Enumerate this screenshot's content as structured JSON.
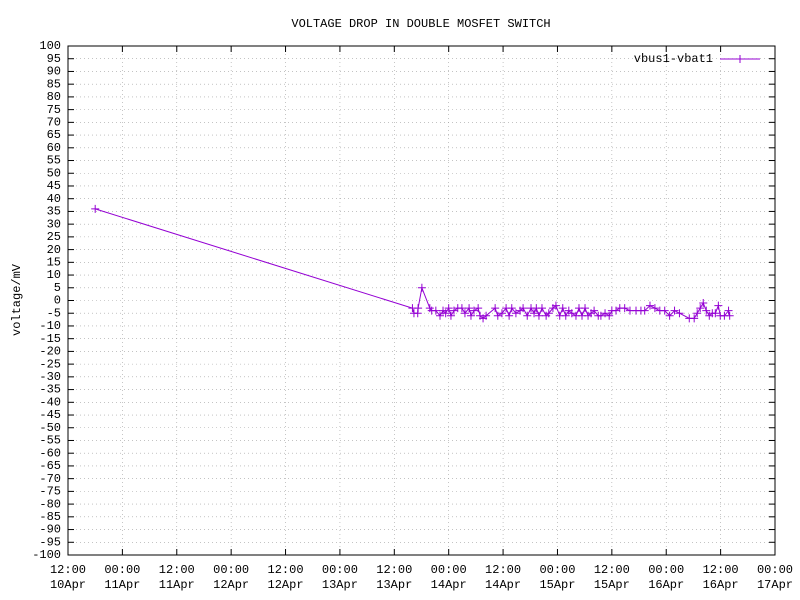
{
  "chart_data": {
    "type": "line",
    "title": "VOLTAGE DROP IN DOUBLE MOSFET SWITCH",
    "y_label": "voltage/mV",
    "xlim": [
      "12:00\n10Apr",
      "00:00\n17Apr"
    ],
    "xticks": [
      "12:00\n10Apr",
      "00:00\n11Apr",
      "12:00\n11Apr",
      "00:00\n12Apr",
      "12:00\n12Apr",
      "00:00\n13Apr",
      "12:00\n13Apr",
      "00:00\n14Apr",
      "12:00\n14Apr",
      "00:00\n15Apr",
      "12:00\n15Apr",
      "00:00\n16Apr",
      "12:00\n16Apr",
      "00:00\n17Apr"
    ],
    "ylim": [
      -100,
      100
    ],
    "yticks": [
      -100,
      -95,
      -90,
      -85,
      -80,
      -75,
      -70,
      -65,
      -60,
      -55,
      -50,
      -45,
      -40,
      -35,
      -30,
      -25,
      -20,
      -15,
      -10,
      -5,
      0,
      5,
      10,
      15,
      20,
      25,
      30,
      35,
      40,
      45,
      50,
      55,
      60,
      65,
      70,
      75,
      80,
      85,
      90,
      95,
      100
    ],
    "grid": true,
    "legend": "top-right",
    "series": [
      {
        "name": "vbus1-vbat1",
        "color": "#9400d3",
        "x": [
          "10Apr 18:00",
          "13Apr 16:00",
          "13Apr 16:20",
          "13Apr 17:10",
          "13Apr 17:15",
          "13Apr 18:05",
          "13Apr 19:50",
          "13Apr 20:15",
          "13Apr 21:10",
          "13Apr 22:05",
          "13Apr 22:45",
          "13Apr 23:20",
          "14Apr 00:00",
          "14Apr 00:30",
          "14Apr 01:10",
          "14Apr 02:00",
          "14Apr 02:55",
          "14Apr 03:35",
          "14Apr 04:30",
          "14Apr 04:55",
          "14Apr 05:35",
          "14Apr 06:30",
          "14Apr 06:55",
          "14Apr 07:35",
          "14Apr 08:15",
          "14Apr 10:15",
          "14Apr 10:50",
          "14Apr 11:45",
          "14Apr 12:40",
          "14Apr 13:20",
          "14Apr 13:55",
          "14Apr 14:50",
          "14Apr 15:45",
          "14Apr 16:25",
          "14Apr 17:20",
          "14Apr 18:10",
          "14Apr 18:50",
          "14Apr 19:20",
          "14Apr 19:55",
          "14Apr 20:35",
          "14Apr 21:30",
          "14Apr 22:05",
          "14Apr 23:00",
          "14Apr 23:40",
          "15Apr 00:30",
          "15Apr 01:10",
          "15Apr 01:50",
          "15Apr 02:30",
          "15Apr 03:10",
          "15Apr 04:05",
          "15Apr 04:45",
          "15Apr 05:25",
          "15Apr 06:05",
          "15Apr 06:45",
          "15Apr 07:25",
          "15Apr 08:05",
          "15Apr 09:00",
          "15Apr 09:35",
          "15Apr 10:30",
          "15Apr 11:25",
          "15Apr 12:00",
          "15Apr 12:55",
          "15Apr 13:45",
          "15Apr 14:50",
          "15Apr 16:00",
          "15Apr 17:20",
          "15Apr 18:25",
          "15Apr 19:15",
          "15Apr 20:25",
          "15Apr 21:30",
          "15Apr 22:35",
          "15Apr 23:40",
          "16Apr 00:45",
          "16Apr 01:50",
          "16Apr 02:55",
          "16Apr 05:05",
          "16Apr 06:10",
          "16Apr 06:50",
          "16Apr 07:30",
          "16Apr 08:10",
          "16Apr 08:50",
          "16Apr 09:30",
          "16Apr 10:10",
          "16Apr 10:50",
          "16Apr 11:30",
          "16Apr 11:55",
          "16Apr 12:50",
          "16Apr 13:45",
          "16Apr 14:00"
        ],
        "values": [
          36,
          -3,
          -5,
          -5,
          -3,
          5,
          -3,
          -4,
          -4,
          -6,
          -4,
          -5,
          -3,
          -6,
          -4,
          -3,
          -3,
          -5,
          -3,
          -6,
          -4,
          -3,
          -6,
          -7,
          -6,
          -3,
          -6,
          -5,
          -3,
          -6,
          -3,
          -5,
          -4,
          -3,
          -6,
          -3,
          -5,
          -3,
          -6,
          -3,
          -6,
          -5,
          -3,
          -2,
          -6,
          -3,
          -6,
          -4,
          -5,
          -6,
          -3,
          -6,
          -3,
          -6,
          -5,
          -4,
          -6,
          -6,
          -5,
          -6,
          -4,
          -4,
          -3,
          -3,
          -4,
          -4,
          -4,
          -4,
          -2,
          -3,
          -4,
          -4,
          -6,
          -4,
          -5,
          -7,
          -7,
          -5,
          -3,
          -1,
          -4,
          -6,
          -5,
          -5,
          -2,
          -6,
          -6,
          -4,
          -6
        ]
      }
    ]
  }
}
